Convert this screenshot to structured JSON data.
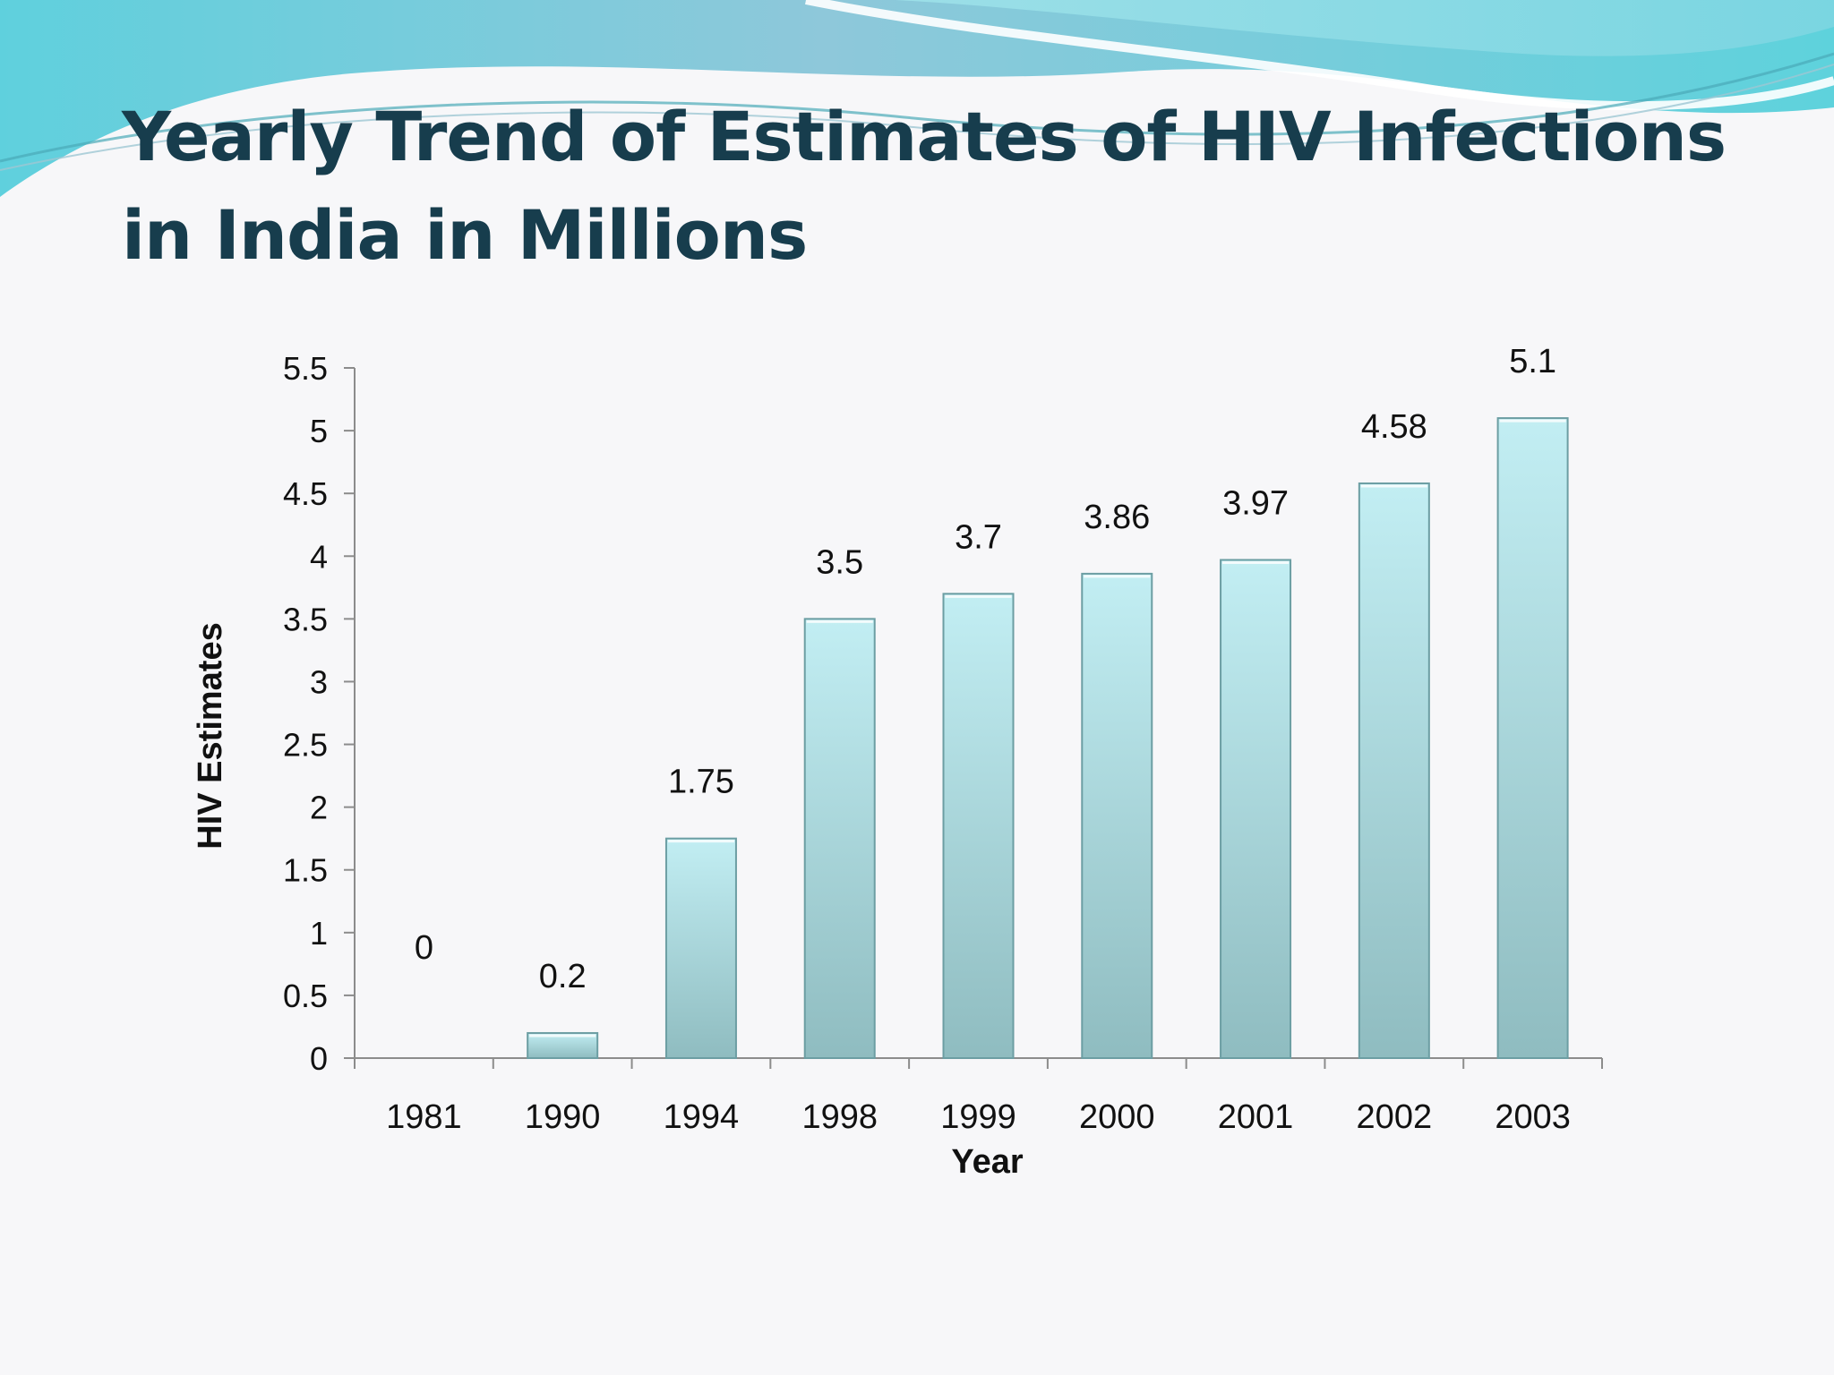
{
  "slide": {
    "title": "Yearly Trend of Estimates of HIV Infections in India in Millions"
  },
  "chart_data": {
    "type": "bar",
    "title": "",
    "xlabel": "Year",
    "ylabel": "HIV Estimates",
    "categories": [
      "1981",
      "1990",
      "1994",
      "1998",
      "1999",
      "2000",
      "2001",
      "2002",
      "2003"
    ],
    "values": [
      0,
      0.2,
      1.75,
      3.5,
      3.7,
      3.86,
      3.97,
      4.58,
      5.1
    ],
    "data_labels": [
      "0",
      "0.2",
      "1.75",
      "3.5",
      "3.7",
      "3.86",
      "3.97",
      "4.58",
      "5.1"
    ],
    "ylim": [
      0,
      5.5
    ],
    "yticks": [
      "0",
      "0.5",
      "1",
      "1.5",
      "2",
      "2.5",
      "3",
      "3.5",
      "4",
      "4.5",
      "5",
      "5.5"
    ],
    "grid": false,
    "legend": "none",
    "colors": {
      "bar_top": "#c2eef3",
      "bar_bottom": "#8fbcc0",
      "bar_edge": "#6c9ea3",
      "axis": "#8c8c8c",
      "title": "#173d4d"
    }
  }
}
